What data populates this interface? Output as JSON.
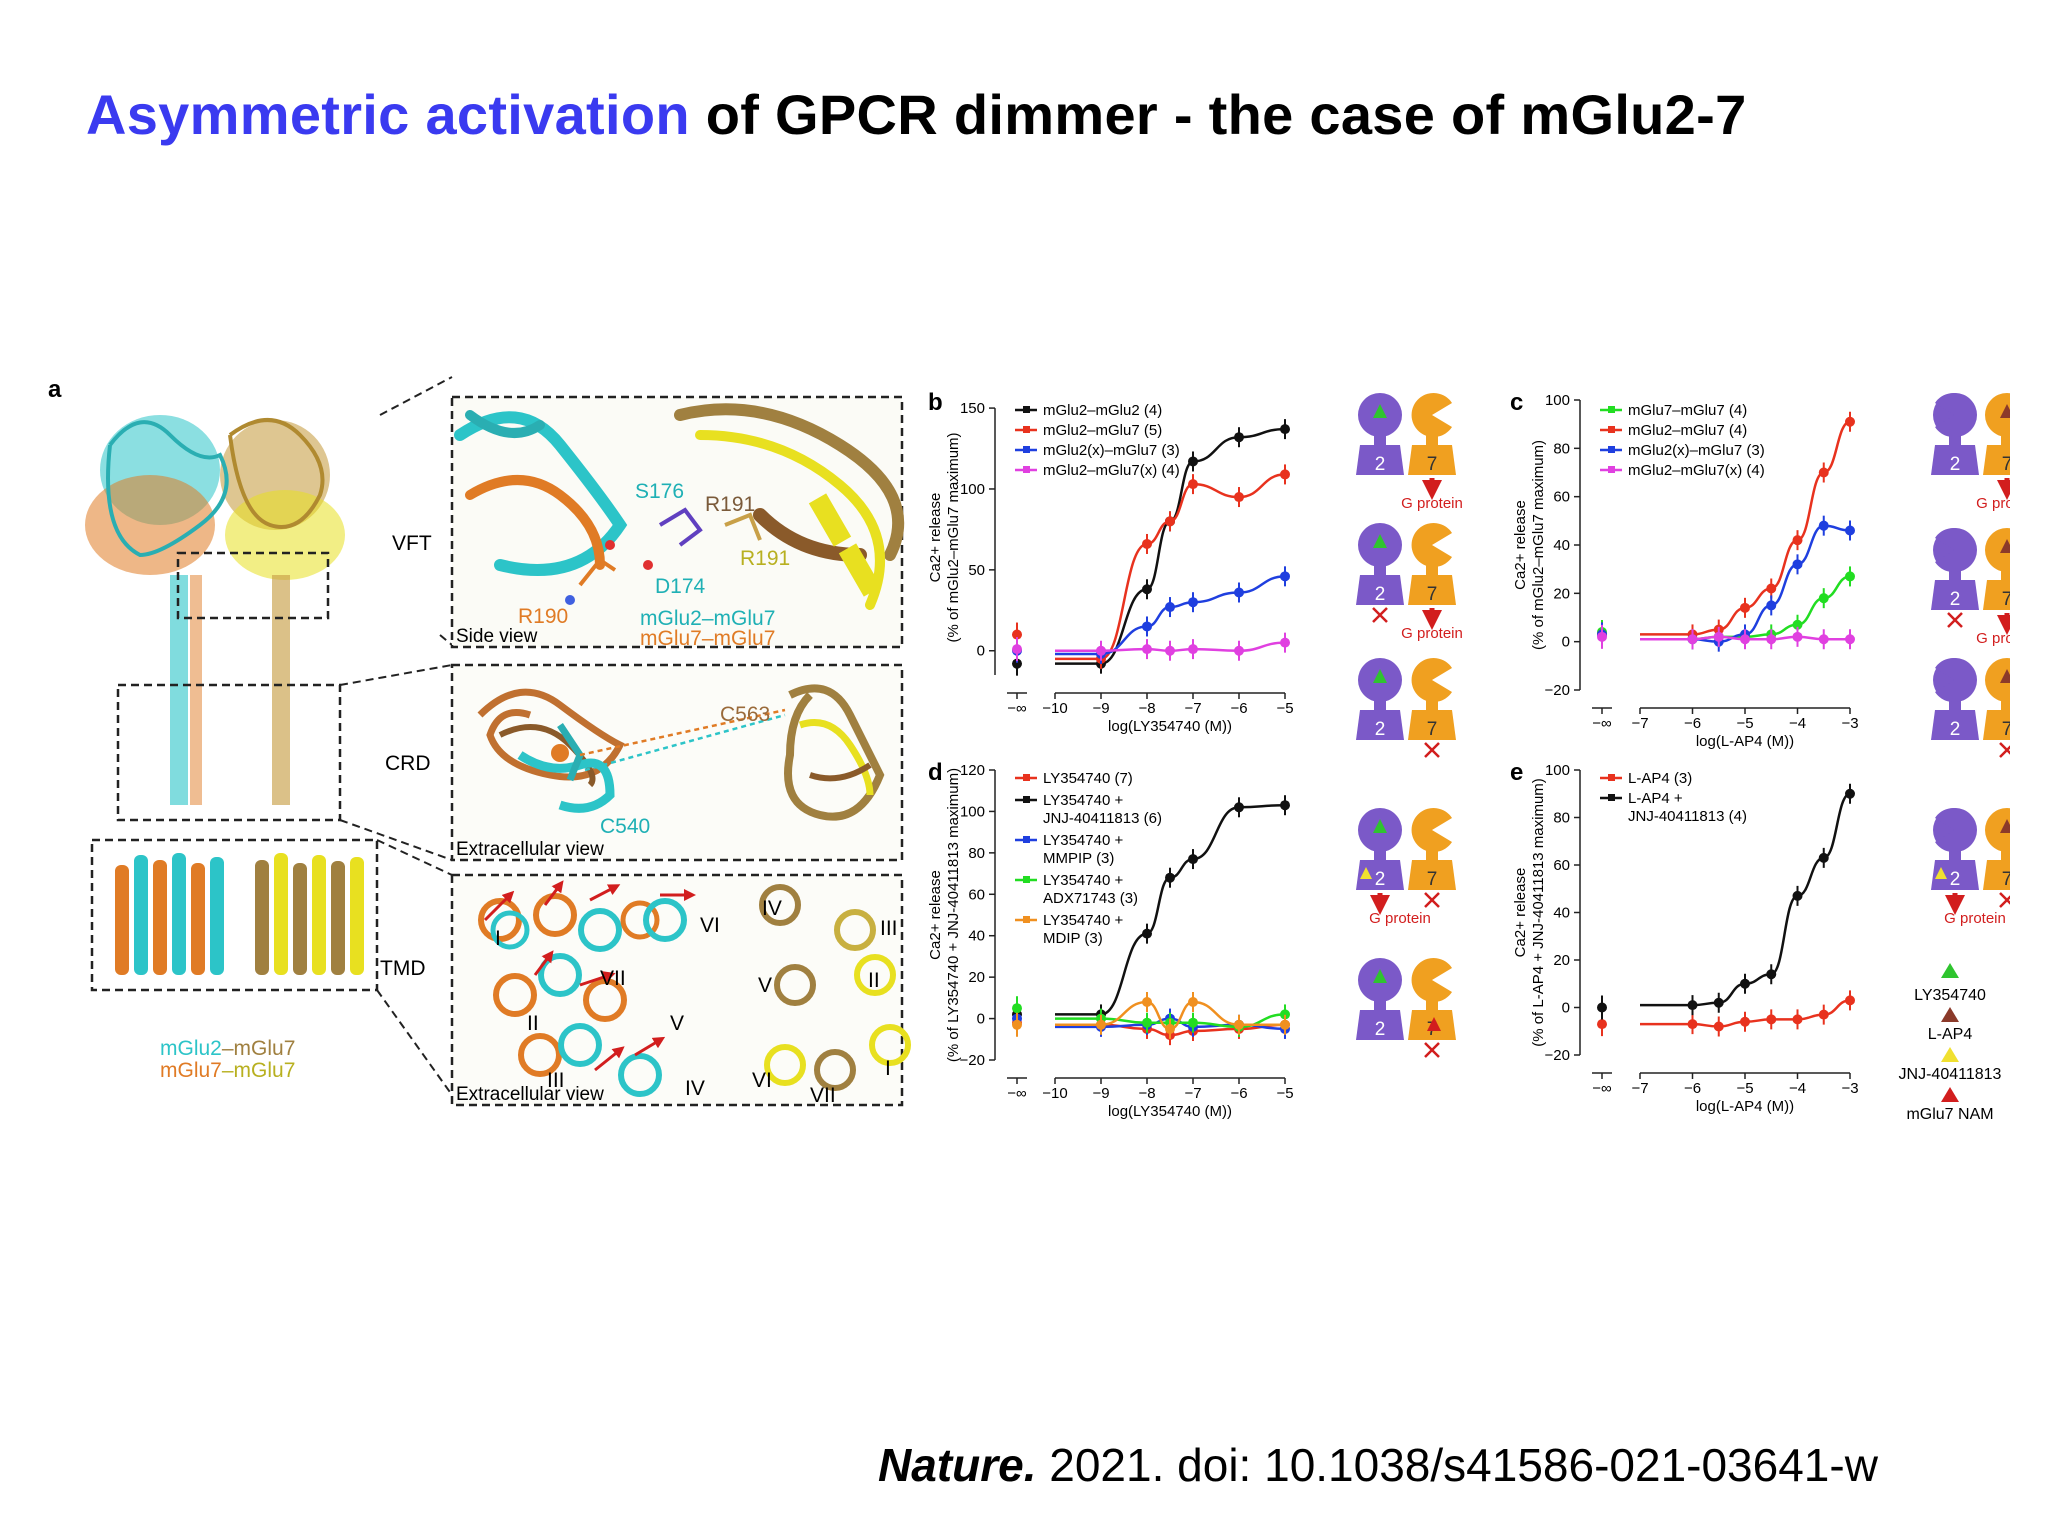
{
  "slide": {
    "title_highlight": "Asymmetric activation",
    "title_rest": "of GPCR dimmer - the case of mGlu2-7",
    "citation_journal": "Nature.",
    "citation_rest": "2021. doi: 10.1038/s41586-021-03641-w",
    "colors": {
      "title_highlight": "#3a3af0",
      "title_text": "#000000"
    }
  },
  "panel_a": {
    "letter": "a",
    "legend_line1_a": "mGlu2",
    "legend_line1_b": "–mGlu7",
    "legend_line2_a": "mGlu7",
    "legend_line2_b": "–mGlu7",
    "regions": [
      "VFT",
      "CRD",
      "TMD"
    ],
    "vft_labels": {
      "s176": "S176",
      "r191": "R191",
      "r191b": "R191",
      "d174": "D174",
      "r190": "R190",
      "pair1": "mGlu2–mGlu7",
      "pair2": "mGlu7–mGlu7",
      "view": "Side view"
    },
    "crd_labels": {
      "c563": "C563",
      "c540": "C540",
      "view": "Extracellular view"
    },
    "tmd_labels": {
      "helices_left": [
        "I",
        "VII",
        "VI",
        "II",
        "V",
        "III",
        "IV"
      ],
      "helices_right": [
        "IV",
        "III",
        "V",
        "II",
        "VI",
        "VII",
        "I"
      ],
      "view": "Extracellular view"
    },
    "colors": {
      "mglu2": "#2cc4c8",
      "mglu7_a": "#e07b25",
      "mglu7_b": "#a08040",
      "mglu7_c": "#e8e020"
    }
  },
  "chart_data": [
    {
      "panel": "b",
      "type": "line",
      "ylabel_sup": "Ca2+ release",
      "ylabel2": "(% of mGlu2–mGlu7 maximum)",
      "xlabel": "log(LY354740 (M))",
      "xticks": [
        "−∞",
        "−10",
        "−9",
        "−8",
        "−7",
        "−6",
        "−5"
      ],
      "yticks": [
        0,
        50,
        100,
        150
      ],
      "ylim": [
        -15,
        155
      ],
      "x": [
        -9,
        -8,
        -7.5,
        -7,
        -6,
        -5
      ],
      "series": [
        {
          "name": "mGlu2–mGlu2 (4)",
          "color": "#111111",
          "values": [
            -8,
            38,
            80,
            117,
            132,
            137
          ],
          "baseline": -8
        },
        {
          "name": "mGlu2–mGlu7 (5)",
          "color": "#e8321e",
          "values": [
            -5,
            66,
            80,
            103,
            95,
            109
          ],
          "baseline": 10
        },
        {
          "name": "mGlu2(x)–mGlu7 (3)",
          "color": "#1f3fdf",
          "values": [
            -2,
            15,
            27,
            30,
            36,
            46
          ],
          "baseline": 0
        },
        {
          "name": "mGlu2–mGlu7(x) (4)",
          "color": "#e040e0",
          "values": [
            0,
            1,
            0,
            1,
            0,
            5
          ],
          "baseline": 1
        }
      ]
    },
    {
      "panel": "c",
      "type": "line",
      "ylabel_sup": "Ca2+ release",
      "ylabel2": "(% of mGlu2–mGlu7 maximum)",
      "xlabel": "log(L-AP4 (M))",
      "xticks": [
        "−∞",
        "−7",
        "−6",
        "−5",
        "−4",
        "−3"
      ],
      "yticks": [
        -20,
        0,
        20,
        40,
        60,
        80,
        100
      ],
      "ylim": [
        -20,
        100
      ],
      "x": [
        -6,
        -5.5,
        -5,
        -4.5,
        -4,
        -3.5,
        -3
      ],
      "series": [
        {
          "name": "mGlu7–mGlu7 (4)",
          "color": "#22dd22",
          "values": [
            1,
            2,
            2,
            3,
            7,
            18,
            27
          ],
          "baseline": 4
        },
        {
          "name": "mGlu2–mGlu7 (4)",
          "color": "#e8321e",
          "values": [
            3,
            5,
            14,
            22,
            42,
            70,
            91
          ],
          "baseline": 3
        },
        {
          "name": "mGlu2(x)–mGlu7 (3)",
          "color": "#1f3fdf",
          "values": [
            1,
            0,
            3,
            15,
            32,
            48,
            46
          ],
          "baseline": 3
        },
        {
          "name": "mGlu2–mGlu7(x) (4)",
          "color": "#e040e0",
          "values": [
            1,
            2,
            1,
            1,
            2,
            1,
            1
          ],
          "baseline": 2
        }
      ]
    },
    {
      "panel": "d",
      "type": "line",
      "ylabel_sup": "Ca2+ release",
      "ylabel2": "(% of LY354740 + JNJ-40411813 maximum)",
      "xlabel": "log(LY354740 (M))",
      "xticks": [
        "−∞",
        "−10",
        "−9",
        "−8",
        "−7",
        "−6",
        "−5"
      ],
      "yticks": [
        -20,
        0,
        20,
        40,
        60,
        80,
        100,
        120
      ],
      "ylim": [
        -20,
        120
      ],
      "x": [
        -9,
        -8,
        -7.5,
        -7,
        -6,
        -5
      ],
      "series": [
        {
          "name": "LY354740 (7)",
          "color": "#e8321e",
          "values": [
            -3,
            -5,
            -8,
            -6,
            -5,
            -3
          ],
          "baseline": -2
        },
        {
          "name": "LY354740 + JNJ-40411813 (6)",
          "color": "#111111",
          "values": [
            2,
            41,
            68,
            77,
            102,
            103
          ],
          "baseline": 2
        },
        {
          "name": "LY354740 + MMPIP (3)",
          "color": "#1f3fdf",
          "values": [
            -4,
            -3,
            0,
            -4,
            -3,
            -5
          ],
          "baseline": 0
        },
        {
          "name": "LY354740 + ADX71743 (3)",
          "color": "#22dd22",
          "values": [
            0,
            -2,
            -2,
            -2,
            -4,
            2
          ],
          "baseline": 5
        },
        {
          "name": "LY354740 + MDIP (3)",
          "color": "#f09020",
          "values": [
            -3,
            8,
            -5,
            8,
            -3,
            -3
          ],
          "baseline": -3
        }
      ]
    },
    {
      "panel": "e",
      "type": "line",
      "ylabel_sup": "Ca2+ release",
      "ylabel2": "(% of L-AP4 + JNJ-40411813 maximum)",
      "xlabel": "log(L-AP4 (M))",
      "xticks": [
        "−∞",
        "−7",
        "−6",
        "−5",
        "−4",
        "−3"
      ],
      "yticks": [
        -20,
        0,
        20,
        40,
        60,
        80,
        100
      ],
      "ylim": [
        -20,
        100
      ],
      "x": [
        -6,
        -5.5,
        -5,
        -4.5,
        -4,
        -3.5,
        -3
      ],
      "series": [
        {
          "name": "L-AP4 (3)",
          "color": "#e8321e",
          "values": [
            -7,
            -8,
            -6,
            -5,
            -5,
            -3,
            3
          ],
          "baseline": -7
        },
        {
          "name": "L-AP4 + JNJ-40411813 (4)",
          "color": "#111111",
          "values": [
            1,
            2,
            10,
            14,
            47,
            63,
            90
          ],
          "baseline": 0
        }
      ]
    }
  ],
  "schematics": {
    "subunit_left": "2",
    "subunit_right": "7",
    "g_protein": "G protein",
    "ligand_legend": [
      "LY354740",
      "L-AP4",
      "JNJ-40411813",
      "mGlu7 NAM"
    ],
    "colors": {
      "mglu2": "#7b59c8",
      "mglu7": "#f0a020",
      "arrow": "#d21e1e",
      "ly354740": "#2fc42f",
      "lap4": "#8b3a2a",
      "jnj": "#f0e030",
      "nam": "#d21e1e"
    }
  }
}
